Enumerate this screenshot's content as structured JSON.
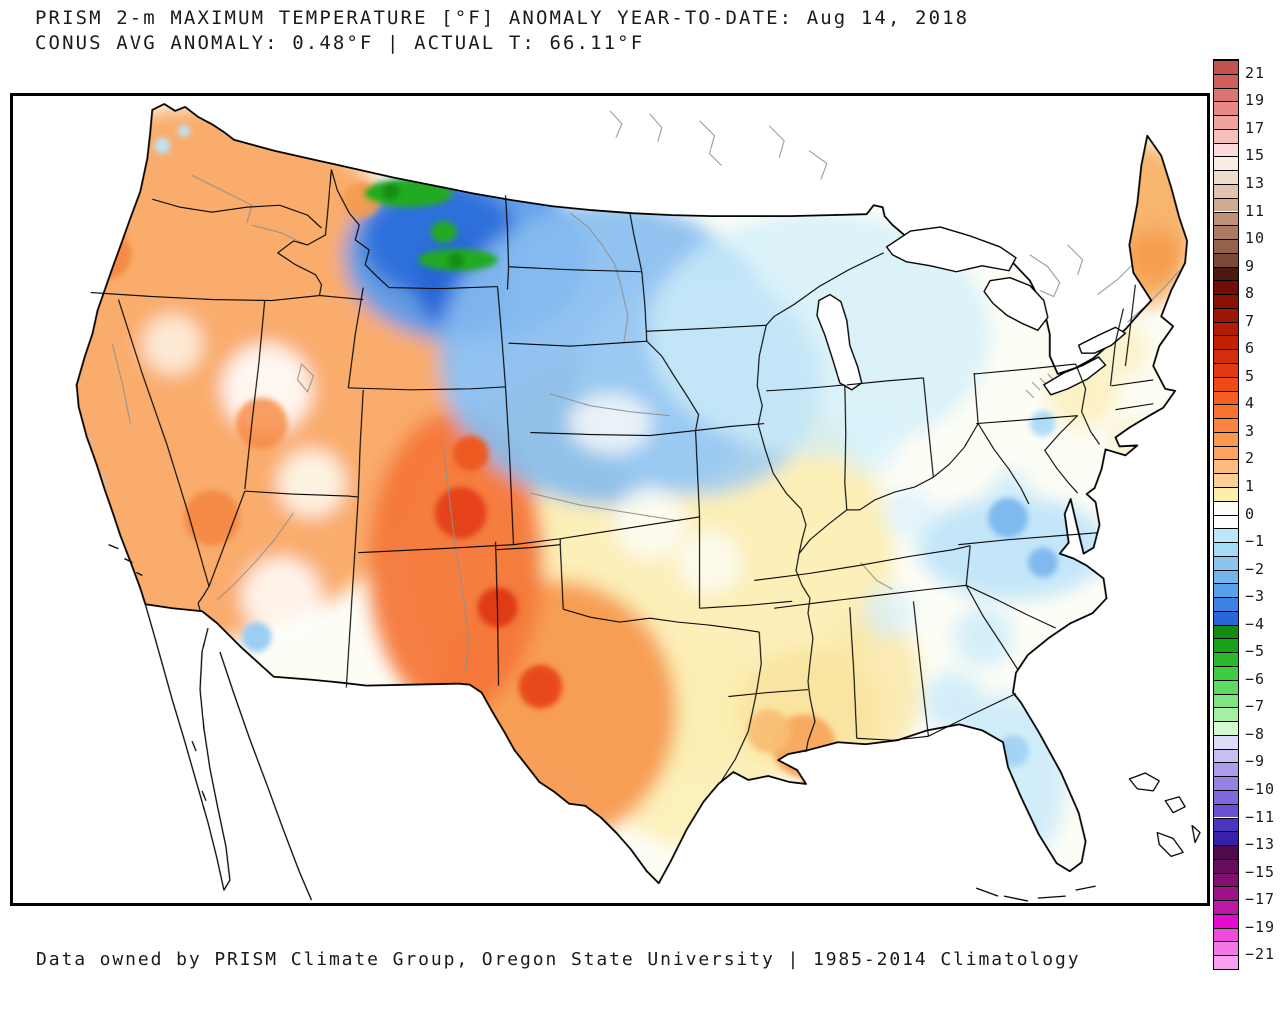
{
  "header": {
    "line1": "PRISM 2-m MAXIMUM TEMPERATURE [°F] ANOMALY YEAR-TO-DATE: Aug 14, 2018",
    "line2": "CONUS AVG ANOMALY: 0.48°F | ACTUAL T: 66.11°F"
  },
  "footer": {
    "text": "Data owned by PRISM Climate Group, Oregon State University | 1985-2014 Climatology"
  },
  "chart_data": {
    "type": "heatmap",
    "title": "PRISM 2-m MAXIMUM TEMPERATURE [°F] ANOMALY YEAR-TO-DATE: Aug 14, 2018",
    "subtitle": "CONUS AVG ANOMALY: 0.48°F | ACTUAL T: 66.11°F",
    "variable": "2-m maximum temperature anomaly year-to-date",
    "units": "°F",
    "date": "Aug 14, 2018",
    "conus_avg_anomaly_f": 0.48,
    "actual_t_f": 66.11,
    "climatology": "1985-2014",
    "source": "PRISM Climate Group, Oregon State University",
    "map_region": "Contiguous United States (CONUS)",
    "legend_position": "right vertical colorbar",
    "colorbar": {
      "orientation": "vertical",
      "range": [
        -21,
        21
      ],
      "tick_labels": [
        "21",
        "19",
        "17",
        "15",
        "13",
        "11",
        "10",
        "9",
        "8",
        "7",
        "6",
        "5",
        "4",
        "3",
        "2",
        "1",
        "0",
        "−1",
        "−2",
        "−3",
        "−4",
        "−5",
        "−6",
        "−7",
        "−8",
        "−9",
        "−10",
        "−11",
        "−13",
        "−15",
        "−17",
        "−19",
        "−21"
      ],
      "cell_colors": [
        "#C4524E",
        "#CF5F5B",
        "#DB7370",
        "#E78986",
        "#F1A3A1",
        "#F8BFBE",
        "#FBDBDA",
        "#F9ECE2",
        "#F0DCCB",
        "#E2C4B0",
        "#D2AA92",
        "#C09179",
        "#AC7A62",
        "#95614B",
        "#7C4936",
        "#4A1A10",
        "#720E05",
        "#8B1004",
        "#9F1605",
        "#B21B04",
        "#C22102",
        "#D22D0C",
        "#E13A10",
        "#EF4A18",
        "#F55D22",
        "#F97330",
        "#FB833E",
        "#FC9750",
        "#FDA462",
        "#FDBC80",
        "#FDCF96",
        "#FAF0AC",
        "#FEFEF8",
        "#FFFFFF",
        "#BCE7FA",
        "#A6DBF7",
        "#8AC5F2",
        "#74B3EE",
        "#57A0EA",
        "#3B82E2",
        "#2767D8",
        "#128C12",
        "#16A316",
        "#2BB82B",
        "#40CC40",
        "#5FDA5F",
        "#7FE67F",
        "#A3EFA3",
        "#D5F9D0",
        "#DDDCF8",
        "#C6C0F3",
        "#AC9CEC",
        "#9582E4",
        "#7F68DC",
        "#6A51D3",
        "#4B36C2",
        "#3620AC",
        "#4E0A4A",
        "#690C5E",
        "#821070",
        "#9D1387",
        "#BD17A5",
        "#E70BD2",
        "#EF4CDF",
        "#F477E8",
        "#F9A2F1"
      ]
    },
    "regions": [
      {
        "region": "Pacific Northwest / Great Basin / California",
        "anomaly_f": "+1 to +4, speckled orange"
      },
      {
        "region": "Colorado / New Mexico / west Texas",
        "anomaly_f": "+3 to +7, warmest (red cores)"
      },
      {
        "region": "Montana / northern Rockies",
        "anomaly_f": "-2 to -6, coolest; green spots -4 to -7"
      },
      {
        "region": "Dakotas / Nebraska / Minnesota / Iowa",
        "anomaly_f": "-1 to -4 blue"
      },
      {
        "region": "Central plains Kansas / Oklahoma",
        "anomaly_f": "0 to +2 pale yellow"
      },
      {
        "region": "Midwest / Ohio Valley",
        "anomaly_f": "0 to -1, white with light-blue speckle"
      },
      {
        "region": "Virginia / Carolinas / Georgia / Florida",
        "anomaly_f": "0 to -2 light blue patches"
      },
      {
        "region": "Louisiana / Mississippi Gulf Coast",
        "anomaly_f": "+1 to +3 orange spots"
      },
      {
        "region": "Maine",
        "anomaly_f": "+2 to +3 orange"
      }
    ]
  }
}
